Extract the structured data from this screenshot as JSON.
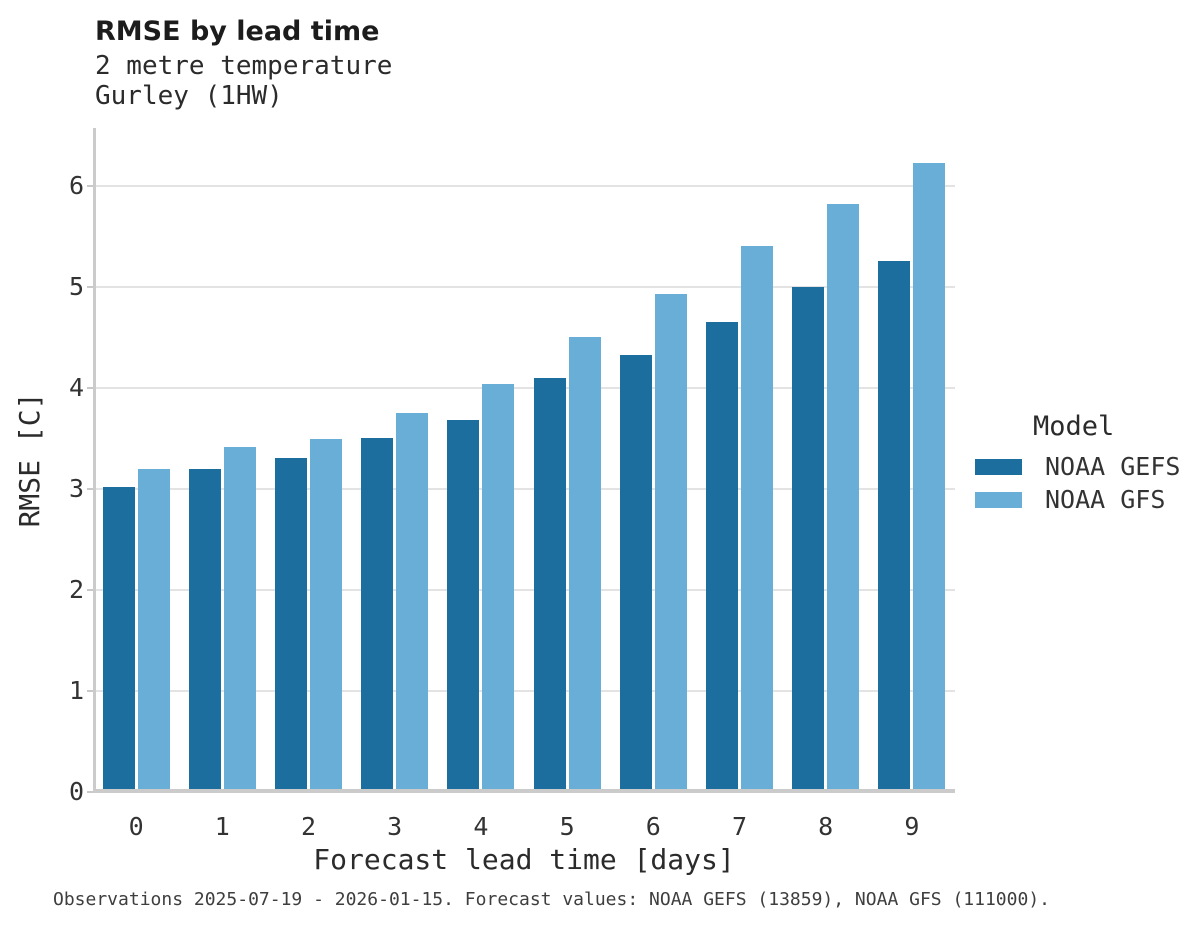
{
  "title": "RMSE by lead time",
  "subtitle": {
    "line1": "2 metre temperature",
    "line2": "Gurley (1HW)"
  },
  "caption": "Observations 2025-07-19 - 2026-01-15. Forecast values: NOAA GEFS (13859), NOAA GFS (111000).",
  "chart_data": {
    "type": "bar",
    "grouped": true,
    "title": "RMSE by lead time",
    "subtitle": [
      "2 metre temperature",
      "Gurley (1HW)"
    ],
    "xlabel": "Forecast lead time [days]",
    "ylabel": "RMSE [C]",
    "categories": [
      "0",
      "1",
      "2",
      "3",
      "4",
      "5",
      "6",
      "7",
      "8",
      "9"
    ],
    "series": [
      {
        "name": "NOAA GEFS",
        "color": "#1b6e9e",
        "values": [
          3.02,
          3.2,
          3.3,
          3.5,
          3.68,
          4.1,
          4.32,
          4.65,
          5.0,
          5.25
        ]
      },
      {
        "name": "NOAA GFS",
        "color": "#69aed6",
        "values": [
          3.2,
          3.41,
          3.49,
          3.75,
          4.04,
          4.5,
          4.93,
          5.4,
          5.82,
          6.22
        ]
      }
    ],
    "ylim": [
      0,
      6.57
    ],
    "yticks": [
      0,
      1,
      2,
      3,
      4,
      5,
      6
    ],
    "grid": "horizontal",
    "legend_title": "Model",
    "legend_position": "right",
    "colors": {
      "grid": "#e3e3e3",
      "axis": "#cbcbcb",
      "dark_series": "#1b6e9e",
      "light_series": "#69aed6"
    }
  }
}
